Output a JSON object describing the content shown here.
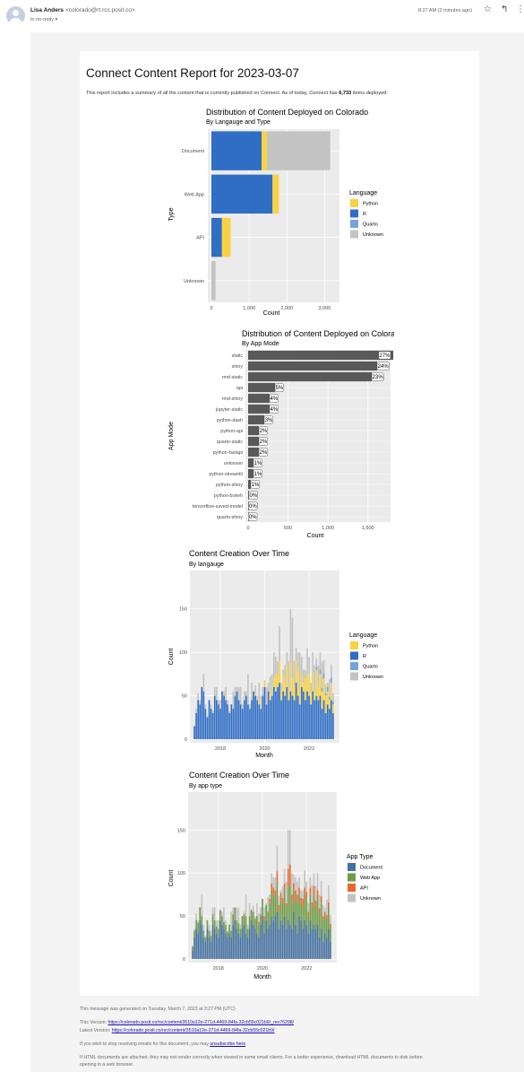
{
  "email": {
    "sender_name": "Lisa Anders",
    "sender_email": "<colorado@rt.rcc.posit.co>",
    "to_line": "to no-reply",
    "time": "8:27 AM (2 minutes ago)"
  },
  "report": {
    "title": "Connect Content Report for 2023-03-07",
    "intro_pre": "This report includes a summary of all the content that is currently published on Connect. As of today, Connect has ",
    "intro_count": "6,733",
    "intro_post": " items deployed:"
  },
  "colors": {
    "python": "#f8d243",
    "r": "#2f6ec4",
    "quarto": "#75a4d8",
    "unknown": "#c3c3c3",
    "document": "#44709e",
    "webapp": "#6e9c47",
    "api": "#e8682e",
    "appmode_bar": "#595959"
  },
  "chart_data": [
    {
      "type": "bar",
      "orientation": "horizontal",
      "stacked": true,
      "title": "Distribution of Content Deployed on Colorado",
      "subtitle": "By Langauge and Type",
      "xlabel": "Count",
      "ylabel": "Type",
      "categories": [
        "Document",
        "Web App",
        "API",
        "Unknown"
      ],
      "xlim": [
        0,
        3300
      ],
      "xticks": [
        0,
        1000,
        2000,
        3000
      ],
      "xtick_labels": [
        "0",
        "1,000",
        "2,000",
        "3,000"
      ],
      "legend_title": "Language",
      "legend_position": "right",
      "series": [
        {
          "name": "R",
          "color_key": "r",
          "values": [
            1330,
            1620,
            280,
            0
          ]
        },
        {
          "name": "Python",
          "color_key": "python",
          "values": [
            140,
            170,
            230,
            0
          ]
        },
        {
          "name": "Quarto",
          "color_key": "quarto",
          "values": [
            0,
            0,
            0,
            0
          ]
        },
        {
          "name": "Unknown",
          "color_key": "unknown",
          "values": [
            1680,
            0,
            0,
            110
          ]
        }
      ],
      "legend_order": [
        "Python",
        "R",
        "Quarto",
        "Unknown"
      ]
    },
    {
      "type": "bar",
      "orientation": "horizontal",
      "title": "Distribution of Content Deployed on Colorado",
      "subtitle": "By App Mode",
      "xlabel": "Count",
      "ylabel": "App Mode",
      "categories": [
        "static",
        "shiny",
        "rmd-static",
        "api",
        "rmd-shiny",
        "jupyter-static",
        "python-dash",
        "python-api",
        "quarto-static",
        "python-fastapi",
        "unknown",
        "python-streamlit",
        "python-shiny",
        "python-bokeh",
        "tensorflow-saved-model",
        "quarto-shiny"
      ],
      "values": [
        1818,
        1616,
        1549,
        337,
        269,
        269,
        202,
        135,
        135,
        135,
        67,
        67,
        34,
        10,
        5,
        3
      ],
      "data_labels": [
        "27%",
        "24%",
        "23%",
        "5%",
        "4%",
        "4%",
        "3%",
        "2%",
        "2%",
        "2%",
        "1%",
        "1%",
        "1%",
        "0%",
        "0%",
        "0%"
      ],
      "xlim": [
        0,
        1750
      ],
      "xticks": [
        0,
        500,
        1000,
        1500
      ],
      "xtick_labels": [
        "0",
        "500",
        "1,000",
        "1,500"
      ]
    },
    {
      "type": "bar",
      "stacked": true,
      "title": "Content Creation Over Time",
      "subtitle": "By langauge",
      "xlabel": "Month",
      "ylabel": "Count",
      "ylim": [
        0,
        190
      ],
      "yticks": [
        0,
        50,
        100,
        150
      ],
      "xticks": [
        "2018",
        "2020",
        "2022"
      ],
      "x_start": "2016-11",
      "x_end": "2023-03",
      "legend_title": "Language",
      "legend_position": "right",
      "legend": [
        "Python",
        "R",
        "Quarto",
        "Unknown"
      ],
      "series": [
        {
          "name": "R",
          "color_key": "r",
          "values": [
            15,
            30,
            45,
            40,
            60,
            55,
            35,
            25,
            45,
            35,
            30,
            50,
            45,
            40,
            35,
            55,
            50,
            45,
            40,
            30,
            40,
            35,
            50,
            55,
            45,
            40,
            35,
            45,
            50,
            40,
            35,
            45,
            55,
            50,
            45,
            40,
            35,
            50,
            60,
            40,
            55,
            45,
            50,
            60,
            55,
            60,
            65,
            45,
            55,
            50,
            60,
            45,
            55,
            50,
            45,
            65,
            50,
            40,
            60,
            55,
            45,
            55,
            50,
            40,
            55,
            45,
            50,
            45,
            50,
            35,
            45,
            30,
            40,
            35,
            45,
            30
          ]
        },
        {
          "name": "Python",
          "color_key": "python",
          "values": [
            0,
            0,
            0,
            0,
            0,
            0,
            0,
            0,
            0,
            0,
            0,
            0,
            0,
            0,
            0,
            0,
            0,
            0,
            0,
            0,
            0,
            0,
            0,
            0,
            0,
            0,
            0,
            0,
            0,
            0,
            0,
            0,
            0,
            2,
            0,
            5,
            0,
            0,
            8,
            0,
            0,
            12,
            0,
            10,
            20,
            15,
            25,
            10,
            20,
            15,
            25,
            10,
            35,
            20,
            15,
            25,
            30,
            20,
            15,
            10,
            25,
            20,
            25,
            15,
            20,
            10,
            30,
            15,
            25,
            20,
            25,
            20,
            15,
            10,
            20,
            10
          ]
        },
        {
          "name": "Quarto",
          "color_key": "quarto",
          "values": [
            0,
            0,
            0,
            0,
            0,
            0,
            0,
            0,
            0,
            0,
            0,
            0,
            0,
            0,
            0,
            0,
            0,
            0,
            0,
            0,
            0,
            0,
            0,
            0,
            0,
            0,
            0,
            0,
            0,
            0,
            0,
            0,
            0,
            0,
            0,
            0,
            0,
            0,
            0,
            0,
            0,
            0,
            0,
            0,
            0,
            0,
            0,
            0,
            0,
            0,
            0,
            0,
            0,
            0,
            0,
            0,
            0,
            0,
            0,
            0,
            0,
            0,
            0,
            0,
            0,
            0,
            3,
            0,
            5,
            4,
            6,
            3,
            5,
            4,
            6,
            3
          ]
        },
        {
          "name": "Unknown",
          "color_key": "unknown",
          "values": [
            0,
            5,
            8,
            5,
            0,
            20,
            5,
            2,
            0,
            5,
            3,
            10,
            15,
            5,
            10,
            0,
            5,
            15,
            5,
            2,
            0,
            20,
            10,
            5,
            15,
            20,
            5,
            10,
            5,
            35,
            5,
            20,
            0,
            10,
            5,
            20,
            15,
            10,
            0,
            20,
            10,
            15,
            25,
            30,
            20,
            15,
            40,
            10,
            5,
            20,
            15,
            35,
            60,
            70,
            30,
            15,
            20,
            40,
            20,
            15,
            10,
            30,
            20,
            10,
            25,
            30,
            10,
            25,
            20,
            30,
            15,
            10,
            5,
            20,
            15,
            10
          ]
        }
      ]
    },
    {
      "type": "bar",
      "stacked": true,
      "title": "Content Creation Over Time",
      "subtitle": "By app type",
      "xlabel": "Month",
      "ylabel": "Count",
      "ylim": [
        0,
        190
      ],
      "yticks": [
        0,
        50,
        100,
        150
      ],
      "xticks": [
        "2018",
        "2020",
        "2022"
      ],
      "x_start": "2016-11",
      "x_end": "2023-03",
      "legend_title": "App Type",
      "legend_position": "right",
      "legend": [
        "Document",
        "Web App",
        "API",
        "Unknown"
      ],
      "series": [
        {
          "name": "Document",
          "color_key": "document",
          "values": [
            10,
            25,
            35,
            30,
            45,
            40,
            25,
            20,
            35,
            25,
            20,
            40,
            35,
            30,
            25,
            45,
            40,
            35,
            30,
            25,
            30,
            25,
            40,
            45,
            35,
            30,
            25,
            35,
            40,
            30,
            25,
            35,
            45,
            40,
            35,
            30,
            25,
            40,
            50,
            30,
            45,
            35,
            40,
            50,
            45,
            50,
            55,
            35,
            45,
            40,
            50,
            35,
            45,
            40,
            35,
            55,
            40,
            30,
            50,
            45,
            35,
            45,
            40,
            30,
            45,
            35,
            40,
            35,
            40,
            25,
            35,
            20,
            30,
            25,
            35,
            20
          ]
        },
        {
          "name": "Web App",
          "color_key": "webapp",
          "values": [
            5,
            8,
            10,
            12,
            15,
            10,
            8,
            5,
            10,
            8,
            7,
            12,
            10,
            8,
            10,
            12,
            10,
            8,
            10,
            7,
            10,
            8,
            12,
            15,
            10,
            12,
            10,
            15,
            12,
            20,
            10,
            15,
            12,
            15,
            10,
            20,
            15,
            12,
            20,
            15,
            18,
            20,
            25,
            30,
            28,
            25,
            35,
            20,
            22,
            25,
            30,
            25,
            40,
            45,
            30,
            25,
            28,
            35,
            25,
            20,
            25,
            30,
            28,
            20,
            30,
            25,
            35,
            25,
            30,
            28,
            30,
            25,
            20,
            22,
            25,
            18
          ]
        },
        {
          "name": "API",
          "color_key": "api",
          "values": [
            0,
            0,
            0,
            0,
            0,
            0,
            0,
            0,
            0,
            0,
            0,
            0,
            0,
            0,
            0,
            0,
            0,
            0,
            0,
            0,
            0,
            0,
            0,
            0,
            0,
            0,
            0,
            0,
            0,
            0,
            0,
            0,
            0,
            0,
            2,
            0,
            3,
            0,
            0,
            5,
            0,
            0,
            5,
            8,
            10,
            5,
            12,
            8,
            10,
            6,
            8,
            5,
            20,
            25,
            10,
            8,
            12,
            10,
            8,
            6,
            10,
            8,
            10,
            5,
            8,
            6,
            10,
            8,
            10,
            6,
            8,
            5,
            5,
            4,
            6,
            3
          ]
        },
        {
          "name": "Unknown",
          "color_key": "unknown",
          "values": [
            0,
            2,
            8,
            3,
            0,
            25,
            7,
            2,
            0,
            7,
            6,
            8,
            15,
            7,
            10,
            0,
            5,
            17,
            5,
            0,
            0,
            22,
            8,
            0,
            15,
            18,
            5,
            0,
            3,
            25,
            5,
            15,
            0,
            7,
            3,
            15,
            10,
            8,
            0,
            10,
            2,
            17,
            5,
            12,
            12,
            15,
            30,
            10,
            3,
            14,
            17,
            25,
            45,
            40,
            25,
            10,
            15,
            15,
            12,
            9,
            10,
            20,
            12,
            10,
            12,
            20,
            15,
            17,
            20,
            16,
            18,
            13,
            5,
            18,
            20,
            10
          ]
        }
      ]
    }
  ],
  "footer": {
    "generated": "This message was generated on Tuesday, March 7, 2023 at 3:27 PM (UTC)",
    "this_version_label": "This Version: ",
    "this_version_url": "https://colorado.posit.co/rsc/content/3510a12e-271d-4469-84fa-32cb55c021b9/_rev76298/",
    "latest_version_label": "Latest Version: ",
    "latest_version_url": "https://colorado.posit.co/rsc/content/3510a12e-271d-4469-84fa-32cb55c021b9/",
    "unsubscribe_pre": "If you wish to stop receiving emails for this document, you may ",
    "unsubscribe_link": "unsubscribe here",
    "unsubscribe_post": ".",
    "html_note_1": "If HTML documents are attached, they may not render correctly when viewed in some email clients. For a better experience, download HTML documents to disk before",
    "html_note_2": "opening in a web browser."
  }
}
